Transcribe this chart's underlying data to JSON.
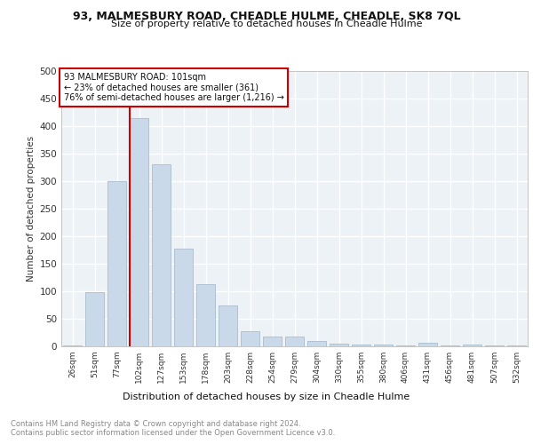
{
  "title1": "93, MALMESBURY ROAD, CHEADLE HULME, CHEADLE, SK8 7QL",
  "title2": "Size of property relative to detached houses in Cheadle Hulme",
  "xlabel": "Distribution of detached houses by size in Cheadle Hulme",
  "ylabel": "Number of detached properties",
  "categories": [
    "26sqm",
    "51sqm",
    "77sqm",
    "102sqm",
    "127sqm",
    "153sqm",
    "178sqm",
    "203sqm",
    "228sqm",
    "254sqm",
    "279sqm",
    "304sqm",
    "330sqm",
    "355sqm",
    "380sqm",
    "406sqm",
    "431sqm",
    "456sqm",
    "481sqm",
    "507sqm",
    "532sqm"
  ],
  "values": [
    2,
    98,
    300,
    415,
    330,
    178,
    113,
    75,
    27,
    18,
    17,
    10,
    5,
    4,
    4,
    2,
    6,
    2,
    3,
    2,
    2
  ],
  "bar_color": "#c9d9e9",
  "bar_edge_color": "#aabccc",
  "vline_x_index": 3,
  "vline_color": "#cc0000",
  "annotation_line1": "93 MALMESBURY ROAD: 101sqm",
  "annotation_line2": "← 23% of detached houses are smaller (361)",
  "annotation_line3": "76% of semi-detached houses are larger (1,216) →",
  "annotation_box_color": "#cc0000",
  "ylim": [
    0,
    500
  ],
  "yticks": [
    0,
    50,
    100,
    150,
    200,
    250,
    300,
    350,
    400,
    450,
    500
  ],
  "footer1": "Contains HM Land Registry data © Crown copyright and database right 2024.",
  "footer2": "Contains public sector information licensed under the Open Government Licence v3.0.",
  "plot_bg_color": "#edf2f7"
}
